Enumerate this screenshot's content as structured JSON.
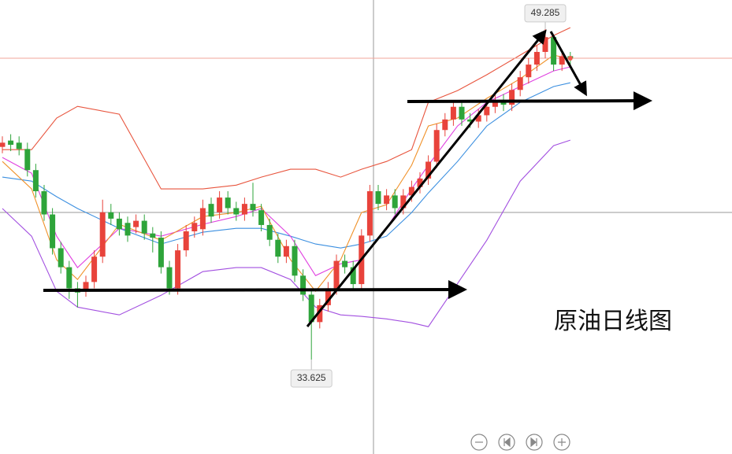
{
  "chart_data": {
    "type": "candlestick",
    "title": "原油日线图",
    "up_color": "#e8433b",
    "down_color": "#2ea43a",
    "ylim": [
      29.15,
      50.66
    ],
    "open": [
      43.7,
      44.0,
      43.9,
      43.6,
      42.6,
      41.6,
      40.5,
      38.9,
      38.0,
      37.0,
      36.9,
      37.3,
      38.5,
      40.6,
      40.3,
      40.1,
      39.9,
      40.2,
      39.6,
      39.4,
      38.0,
      37.0,
      38.8,
      39.7,
      39.8,
      41.0,
      40.6,
      41.3,
      40.8,
      40.5,
      41.0,
      40.7,
      40.0,
      39.3,
      38.5,
      39.0,
      37.6,
      36.7,
      35.4,
      36.2,
      37.0,
      38.3,
      38.0,
      37.2,
      39.5,
      41.6,
      41.0,
      41.4,
      40.8,
      41.4,
      41.8,
      42.2,
      43.0,
      44.5,
      45.0,
      45.6,
      45.0,
      44.9,
      45.2,
      45.6,
      45.9,
      45.7,
      46.4,
      47.0,
      47.6,
      48.2,
      48.9,
      47.6,
      48.0
    ],
    "high": [
      44.2,
      44.3,
      44.2,
      43.9,
      42.9,
      41.9,
      40.8,
      39.2,
      38.3,
      37.3,
      37.6,
      38.8,
      41.2,
      41.0,
      40.6,
      40.4,
      40.5,
      40.5,
      39.9,
      39.7,
      38.3,
      39.1,
      40.0,
      40.4,
      41.2,
      41.3,
      41.6,
      41.6,
      41.1,
      41.3,
      42.0,
      41.0,
      40.3,
      39.6,
      39.3,
      39.3,
      37.9,
      37.0,
      36.5,
      37.3,
      38.6,
      38.6,
      38.3,
      39.8,
      41.9,
      41.9,
      41.7,
      41.7,
      41.7,
      42.1,
      42.5,
      43.3,
      44.8,
      45.3,
      45.9,
      45.9,
      45.3,
      45.5,
      45.9,
      46.2,
      46.2,
      46.7,
      47.3,
      47.9,
      48.5,
      49.285,
      49.0,
      48.3,
      48.2
    ],
    "low": [
      43.4,
      43.5,
      43.3,
      42.3,
      41.3,
      40.2,
      38.6,
      37.7,
      36.5,
      36.1,
      36.6,
      37.0,
      38.2,
      40.0,
      39.5,
      39.2,
      39.6,
      39.3,
      38.7,
      37.7,
      36.7,
      36.7,
      38.5,
      39.4,
      39.5,
      40.1,
      40.3,
      40.5,
      40.2,
      40.2,
      40.4,
      39.7,
      39.0,
      38.2,
      38.2,
      37.3,
      36.4,
      33.625,
      35.1,
      35.9,
      36.7,
      37.7,
      36.9,
      36.9,
      39.2,
      40.7,
      40.7,
      40.5,
      40.5,
      41.1,
      41.5,
      41.9,
      42.7,
      44.2,
      44.7,
      44.7,
      44.6,
      44.6,
      44.9,
      45.3,
      45.4,
      45.4,
      46.1,
      46.7,
      47.3,
      47.9,
      47.3,
      47.3,
      47.6
    ],
    "close": [
      43.9,
      43.8,
      43.6,
      42.6,
      41.6,
      40.5,
      38.9,
      38.0,
      37.0,
      36.8,
      37.3,
      38.5,
      40.6,
      40.3,
      39.8,
      39.5,
      40.2,
      39.6,
      39.4,
      38.0,
      37.0,
      38.8,
      39.7,
      40.1,
      40.8,
      40.4,
      41.3,
      40.8,
      40.5,
      41.0,
      40.7,
      40.0,
      39.3,
      38.5,
      39.0,
      37.6,
      36.7,
      35.4,
      36.2,
      37.0,
      38.3,
      38.0,
      37.2,
      39.5,
      41.6,
      41.0,
      41.4,
      40.8,
      41.4,
      41.8,
      42.2,
      43.0,
      44.5,
      45.0,
      45.6,
      45.0,
      44.9,
      45.2,
      45.6,
      45.9,
      45.7,
      46.4,
      47.0,
      47.6,
      48.2,
      48.9,
      47.6,
      48.0,
      47.9
    ],
    "lines": [
      {
        "color": "#e8553e",
        "x": [
          1,
          4.5,
          7.5,
          10,
          15,
          20,
          25,
          29,
          32,
          35.5,
          38.5,
          41.5,
          44,
          47,
          50,
          52,
          55.5,
          59,
          63,
          67,
          69
        ],
        "values": [
          43.57,
          43.57,
          45.07,
          45.62,
          45.25,
          41.71,
          41.71,
          41.89,
          42.27,
          42.64,
          42.64,
          42.27,
          42.64,
          43.01,
          43.57,
          45.81,
          46.37,
          47.12,
          48.05,
          48.98,
          49.35
        ]
      },
      {
        "color": "#a24fe0",
        "x": [
          1,
          4.5,
          7.5,
          10,
          15,
          20,
          25,
          29,
          32,
          35.5,
          38.5,
          41.5,
          44,
          47,
          50,
          52,
          55.5,
          59,
          63,
          67,
          69
        ],
        "values": [
          40.78,
          39.47,
          36.86,
          36.11,
          35.74,
          36.67,
          37.79,
          37.98,
          37.98,
          37.42,
          36.11,
          35.74,
          35.67,
          35.55,
          35.37,
          35.18,
          37.23,
          39.28,
          42.08,
          43.76,
          44.02
        ]
      },
      {
        "color": "#3b8fe0",
        "x": [
          1,
          4.5,
          7.5,
          10,
          15,
          20,
          25,
          29,
          32,
          35.5,
          38.5,
          41.5,
          44,
          47,
          50,
          52,
          55.5,
          59,
          63,
          67,
          69
        ],
        "values": [
          42.27,
          42.08,
          41.34,
          40.78,
          39.84,
          39.1,
          39.66,
          39.84,
          39.84,
          39.47,
          39.1,
          38.91,
          39.1,
          39.47,
          40.59,
          41.52,
          43.01,
          44.69,
          45.81,
          46.56,
          46.74
        ]
      },
      {
        "color": "#e040e0",
        "x": [
          1,
          4.5,
          7.5,
          10,
          15,
          20,
          25,
          29,
          32,
          35.5,
          38.5,
          41.5,
          44,
          47,
          50,
          52,
          55.5,
          59,
          63,
          67,
          69
        ],
        "values": [
          43.2,
          42.45,
          39.47,
          37.98,
          39.84,
          39.47,
          40.03,
          40.4,
          40.78,
          39.47,
          37.6,
          38.16,
          38.35,
          39.84,
          41.71,
          42.83,
          44.69,
          45.81,
          46.56,
          47.3,
          47.49
        ]
      },
      {
        "color": "#f0922a",
        "x": [
          1,
          4.5,
          7.5,
          10,
          15,
          20,
          25,
          29,
          32,
          35.5,
          38.5,
          41.5,
          44,
          47,
          50,
          52,
          55.5,
          59,
          63,
          67,
          69
        ],
        "values": [
          43.01,
          41.71,
          38.35,
          37.42,
          40.03,
          39.28,
          40.4,
          40.59,
          40.89,
          38.35,
          36.86,
          38.35,
          40.59,
          40.96,
          42.83,
          44.69,
          45.07,
          46.0,
          46.93,
          48.05,
          47.86
        ]
      }
    ]
  }
}
